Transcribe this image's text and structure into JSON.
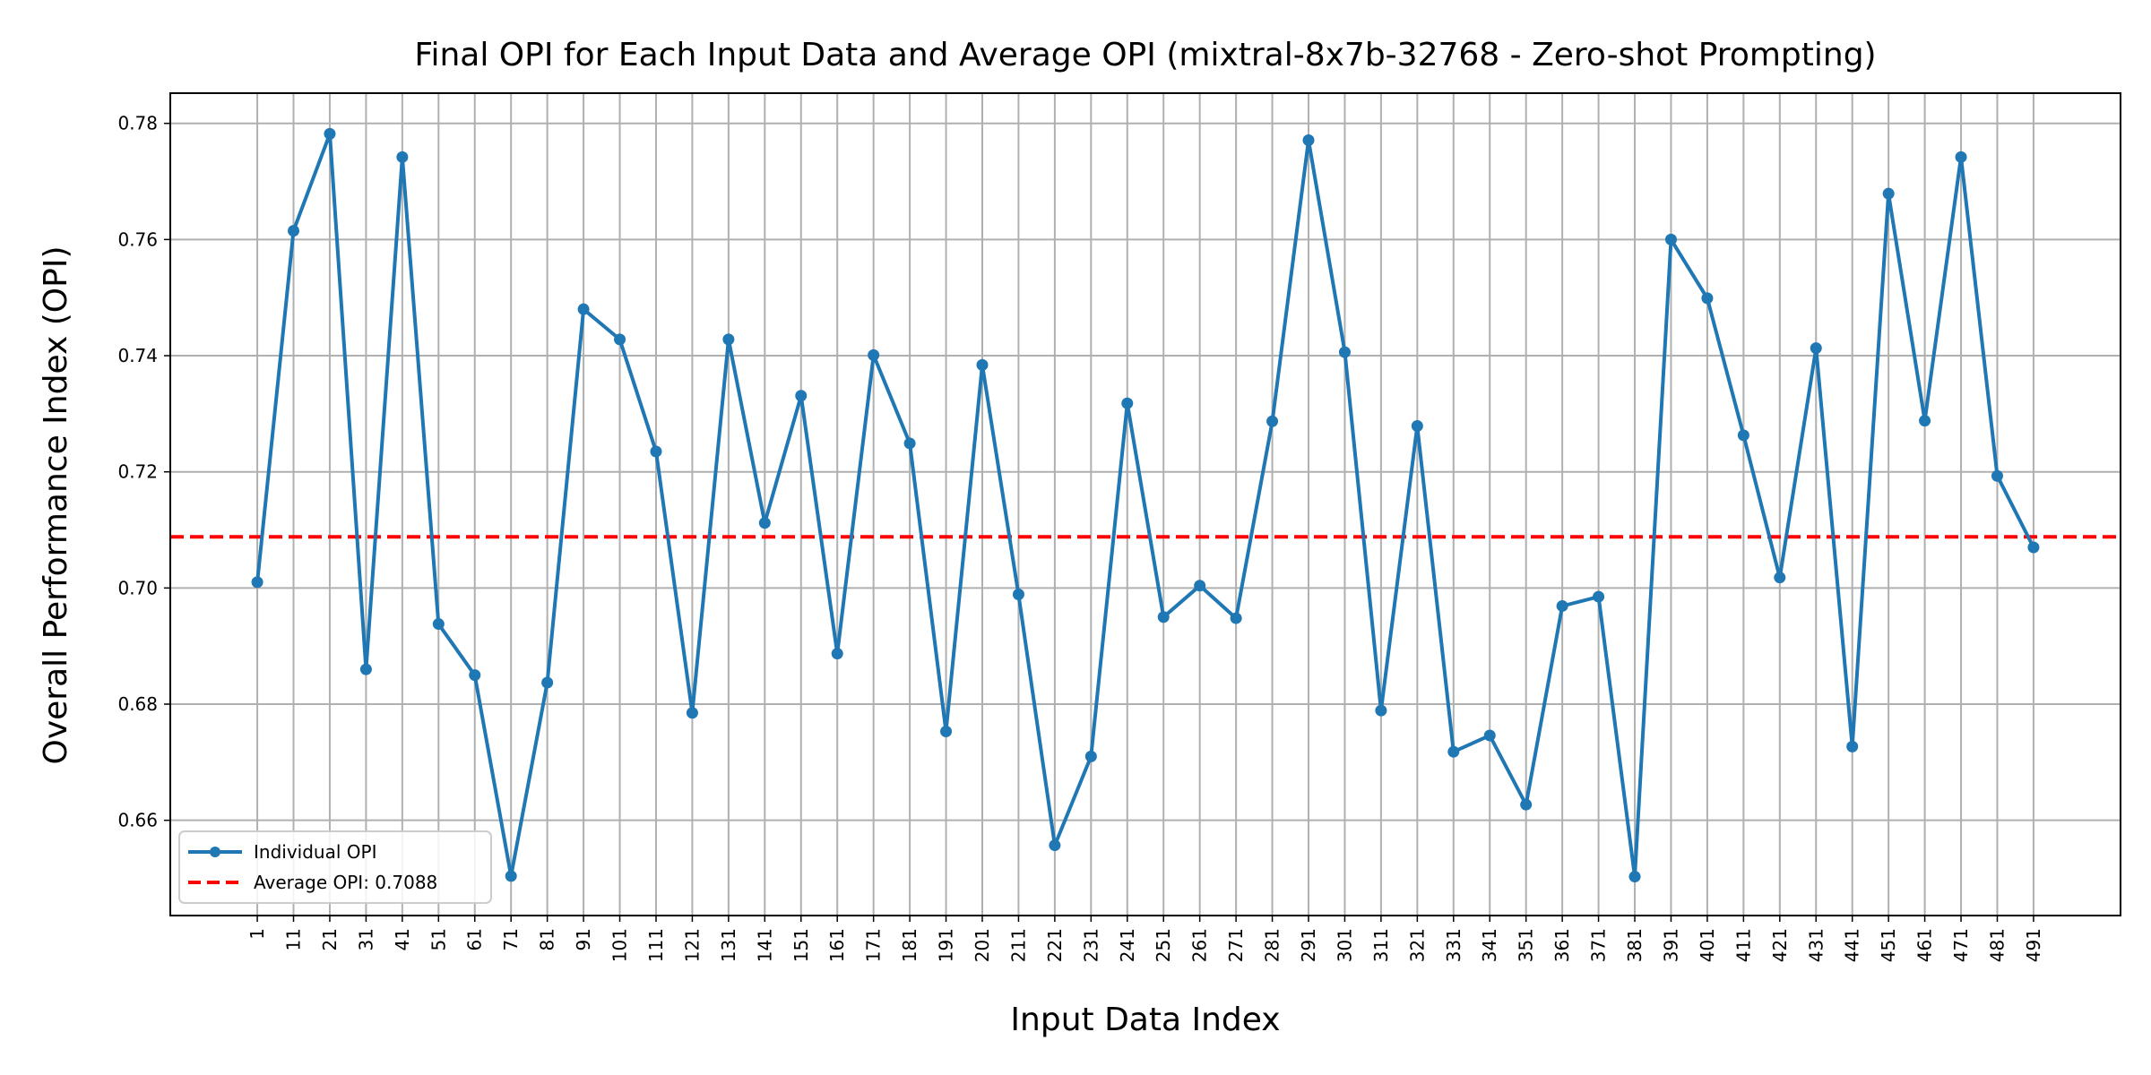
{
  "chart_data": {
    "type": "line",
    "title": "Final OPI for Each Input Data and Average OPI (mixtral-8x7b-32768 - Zero-shot Prompting)",
    "xlabel": "Input Data Index",
    "ylabel": "Overall Performance Index (OPI)",
    "x": [
      1,
      11,
      21,
      31,
      41,
      51,
      61,
      71,
      81,
      91,
      101,
      111,
      121,
      131,
      141,
      151,
      161,
      171,
      181,
      191,
      201,
      211,
      221,
      231,
      241,
      251,
      261,
      271,
      281,
      291,
      301,
      311,
      321,
      331,
      341,
      351,
      361,
      371,
      381,
      391,
      401,
      411,
      421,
      431,
      441,
      451,
      461,
      471,
      481,
      491
    ],
    "xlim": [
      -23,
      515
    ],
    "ylim": [
      0.6436,
      0.7852
    ],
    "yticks": [
      0.66,
      0.68,
      0.7,
      0.72,
      0.74,
      0.76,
      0.78
    ],
    "ytick_labels": [
      "0.66",
      "0.68",
      "0.70",
      "0.72",
      "0.74",
      "0.76",
      "0.78"
    ],
    "grid": true,
    "legend_position": "lower-left",
    "series": [
      {
        "name": "Individual OPI",
        "color": "#1f77b4",
        "marker": "circle",
        "values": [
          0.701,
          0.7615,
          0.7782,
          0.686,
          0.7742,
          0.6938,
          0.685,
          0.6504,
          0.6837,
          0.748,
          0.7428,
          0.7235,
          0.6785,
          0.7428,
          0.7112,
          0.7331,
          0.6887,
          0.7401,
          0.7249,
          0.6753,
          0.7384,
          0.6989,
          0.6557,
          0.671,
          0.7318,
          0.695,
          0.7004,
          0.6948,
          0.7287,
          0.7771,
          0.7406,
          0.6789,
          0.7279,
          0.6718,
          0.6746,
          0.6627,
          0.6969,
          0.6985,
          0.6503,
          0.76,
          0.7499,
          0.7263,
          0.7018,
          0.7413,
          0.6727,
          0.7679,
          0.7288,
          0.7742,
          0.7193,
          0.707
        ]
      }
    ],
    "reference_lines": [
      {
        "name": "Average OPI: 0.7088",
        "value": 0.7088,
        "color": "#ff0000",
        "style": "dashed"
      }
    ]
  }
}
